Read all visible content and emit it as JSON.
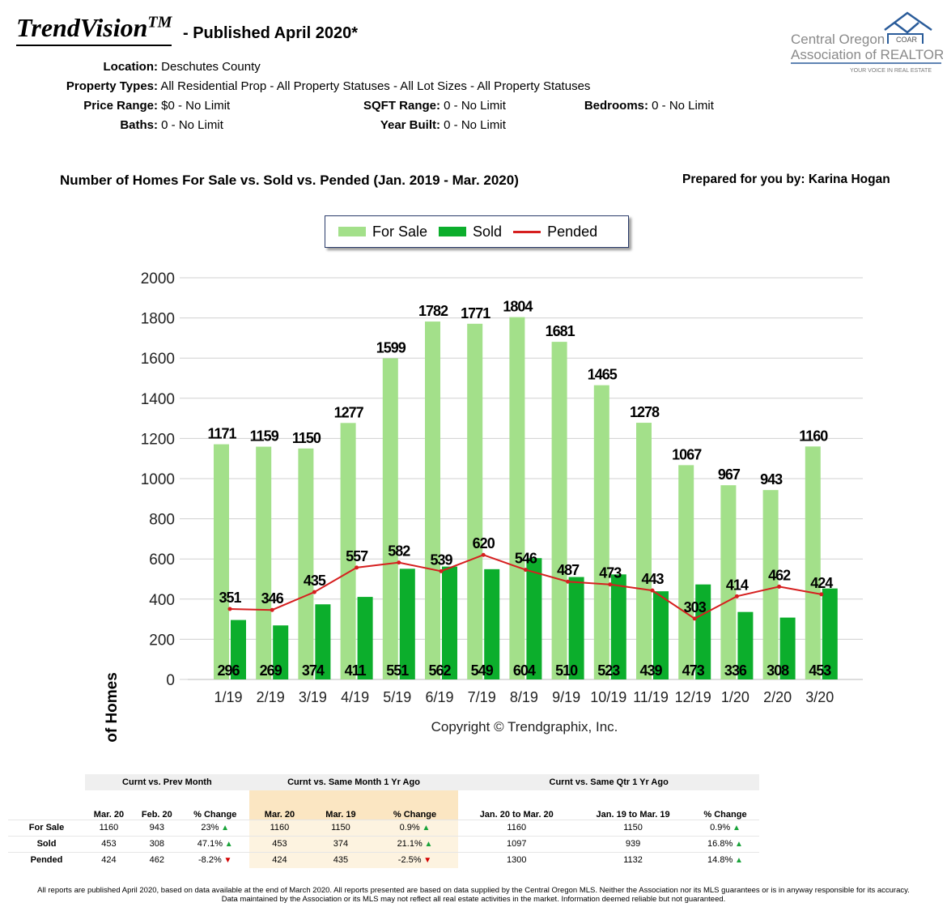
{
  "header": {
    "brand": "TrendVision",
    "brand_mark": "TM",
    "published": "- Published April 2020*"
  },
  "criteria": {
    "location_label": "Location:",
    "location": "Deschutes County",
    "types_label": "Property Types:",
    "types": "All Residential Prop - All Property Statuses - All Lot Sizes - All Property Statuses",
    "price_label": "Price Range:",
    "price": "$0 - No Limit",
    "sqft_label": "SQFT Range:",
    "sqft": "0 - No Limit",
    "beds_label": "Bedrooms:",
    "beds": "0 - No Limit",
    "baths_label": "Baths:",
    "baths": "0 - No Limit",
    "year_label": "Year Built:",
    "year": "0 - No Limit"
  },
  "logo": {
    "line1": "Central Oregon",
    "line2": "Association of REALTORS",
    "badge": "COAR",
    "tagline": "YOUR VOICE IN REAL ESTATE"
  },
  "prepared": "Prepared for you by: Karina Hogan",
  "chart_data": {
    "type": "bar",
    "title": "Number of Homes For Sale vs. Sold vs. Pended (Jan. 2019 - Mar. 2020)",
    "ylabel": "Number of Homes",
    "xlabel": "",
    "ylim": [
      0,
      2000
    ],
    "yticks": [
      0,
      200,
      400,
      600,
      800,
      1000,
      1200,
      1400,
      1600,
      1800,
      2000
    ],
    "grid": true,
    "legend": "top",
    "categories": [
      "1/19",
      "2/19",
      "3/19",
      "4/19",
      "5/19",
      "6/19",
      "7/19",
      "8/19",
      "9/19",
      "10/19",
      "11/19",
      "12/19",
      "1/20",
      "2/20",
      "3/20"
    ],
    "series": [
      {
        "name": "For Sale",
        "kind": "bar",
        "color": "#a3e08a",
        "values": [
          1171,
          1159,
          1150,
          1277,
          1599,
          1782,
          1771,
          1804,
          1681,
          1465,
          1278,
          1067,
          967,
          943,
          1160
        ]
      },
      {
        "name": "Sold",
        "kind": "bar",
        "color": "#0cae2c",
        "values": [
          296,
          269,
          374,
          411,
          551,
          562,
          549,
          604,
          510,
          523,
          439,
          473,
          336,
          308,
          453
        ]
      },
      {
        "name": "Pended",
        "kind": "line",
        "color": "#d61f1f",
        "values": [
          351,
          346,
          435,
          557,
          582,
          539,
          620,
          546,
          487,
          473,
          443,
          303,
          414,
          462,
          424
        ]
      }
    ],
    "annotation": "Copyright © Trendgraphix, Inc."
  },
  "table": {
    "groups": [
      "Curnt vs. Prev Month",
      "Curnt vs. Same Month 1 Yr Ago",
      "Curnt vs. Same Qtr 1 Yr Ago"
    ],
    "columns": [
      "Mar. 20",
      "Feb. 20",
      "% Change",
      "Mar. 20",
      "Mar. 19",
      "% Change",
      "Jan. 20 to Mar. 20",
      "Jan. 19 to Mar. 19",
      "% Change"
    ],
    "rows": [
      {
        "label": "For Sale",
        "cells": [
          "1160",
          "943",
          "23%",
          "1160",
          "1150",
          "0.9%",
          "1160",
          "1150",
          "0.9%"
        ],
        "dirs": [
          "up",
          "up",
          "up"
        ]
      },
      {
        "label": "Sold",
        "cells": [
          "453",
          "308",
          "47.1%",
          "453",
          "374",
          "21.1%",
          "1097",
          "939",
          "16.8%"
        ],
        "dirs": [
          "up",
          "up",
          "up"
        ]
      },
      {
        "label": "Pended",
        "cells": [
          "424",
          "462",
          "-8.2%",
          "424",
          "435",
          "-2.5%",
          "1300",
          "1132",
          "14.8%"
        ],
        "dirs": [
          "down",
          "down",
          "up"
        ]
      }
    ]
  },
  "footer": {
    "line1": "All reports are published April 2020, based on data available at the end of March 2020. All reports presented are based on data supplied by the Central Oregon MLS. Neither the Association nor its MLS guarantees or is in anyway responsible for its accuracy.",
    "line2": "Data maintained by the Association or its MLS may not reflect all real estate activities in the market. Information deemed reliable but not guaranteed."
  }
}
